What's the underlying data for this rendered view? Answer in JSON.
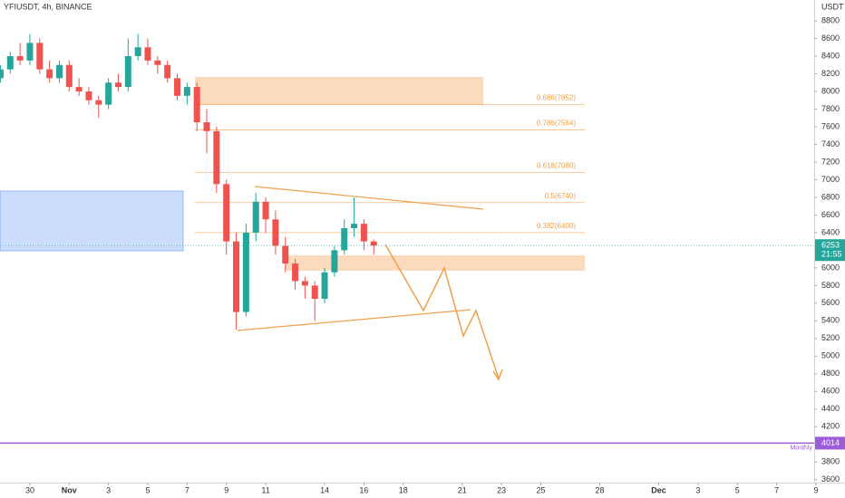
{
  "chart_data": {
    "type": "candlestick",
    "symbol_line": "YFIUSDT, 4h, BINANCE",
    "currency": "USDT",
    "up_color": "#26a69a",
    "down_color": "#ef5350",
    "x": [
      -2.5,
      -2,
      -1.5,
      -1,
      -0.5,
      0,
      0.5,
      1,
      1.5,
      2,
      2.5,
      3,
      3.5,
      4,
      4.5,
      5,
      5.5,
      6,
      6.5,
      7,
      7.5,
      8,
      8.5,
      9,
      9.5,
      10,
      10.5,
      11,
      11.5,
      12,
      12.5,
      13,
      13.5,
      14,
      14.5,
      15,
      15.5,
      16,
      16.5
    ],
    "open": [
      8150,
      8250,
      8400,
      8350,
      8550,
      8250,
      8150,
      8300,
      8050,
      8000,
      7900,
      7850,
      8100,
      8050,
      8400,
      8500,
      8350,
      8300,
      8150,
      7950,
      8050,
      7650,
      7550,
      6950,
      6300,
      5500,
      6400,
      6750,
      6550,
      6250,
      6050,
      5850,
      5800,
      5650,
      5950,
      6200,
      6450,
      6500,
      6300
    ],
    "high": [
      8300,
      8450,
      8550,
      8650,
      8600,
      8350,
      8350,
      8350,
      8150,
      8050,
      7950,
      8150,
      8200,
      8600,
      8650,
      8600,
      8400,
      8350,
      8200,
      8100,
      8100,
      7800,
      7600,
      7000,
      6400,
      6500,
      6850,
      6800,
      6650,
      6350,
      6100,
      5900,
      5850,
      6000,
      6250,
      6550,
      6800,
      6550,
      6320
    ],
    "low": [
      8100,
      8200,
      8300,
      8300,
      8200,
      8100,
      8100,
      8000,
      7950,
      7850,
      7700,
      7800,
      8000,
      8000,
      8350,
      8300,
      8200,
      8100,
      7900,
      7850,
      7550,
      7300,
      6850,
      6150,
      5300,
      5450,
      6300,
      6400,
      6150,
      5950,
      5750,
      5650,
      5400,
      5600,
      5900,
      6150,
      6350,
      6200,
      6150
    ],
    "close": [
      8250,
      8400,
      8350,
      8550,
      8250,
      8150,
      8300,
      8050,
      8000,
      7900,
      7850,
      8100,
      8050,
      8400,
      8500,
      8350,
      8300,
      8150,
      7950,
      8050,
      7650,
      7550,
      6950,
      6300,
      5500,
      6400,
      6750,
      6550,
      6250,
      6050,
      5850,
      5800,
      5650,
      5950,
      6200,
      6450,
      6500,
      6300,
      6253
    ],
    "xlim": [
      -2.52,
      38.91
    ],
    "xticks": [
      {
        "value": -1,
        "label": "30"
      },
      {
        "value": 1,
        "label": "Nov"
      },
      3,
      5,
      7,
      9,
      11,
      14,
      16,
      18,
      21,
      23,
      25,
      28,
      {
        "value": 31,
        "label": "Dec"
      },
      {
        "value": 33,
        "label": "3"
      },
      {
        "value": 35,
        "label": "5"
      },
      {
        "value": 37,
        "label": "7"
      },
      {
        "value": 39,
        "label": "9"
      }
    ],
    "ylim": [
      3567,
      9036
    ],
    "yticks": [
      8800,
      8600,
      8400,
      8200,
      8000,
      7800,
      7600,
      7400,
      7200,
      7000,
      6800,
      6600,
      6400,
      6000,
      5800,
      5600,
      5400,
      5200,
      5000,
      4800,
      4600,
      4400,
      4200,
      3800,
      3600
    ],
    "fib_levels": [
      {
        "label": "0.686(7852)",
        "value": 7852
      },
      {
        "label": "0.786(7564)",
        "value": 7564
      },
      {
        "label": "0.618(7080)",
        "value": 7080
      },
      {
        "label": "0.5(6740)",
        "value": 6740
      },
      {
        "label": "0.382(6400)",
        "value": 6400
      }
    ],
    "fib_color": "#f0a04b",
    "last_price": 6253,
    "countdown": "21:55",
    "monthly_line": {
      "name": "Monthly",
      "value": 4014,
      "color": "#9c5bd8"
    }
  }
}
